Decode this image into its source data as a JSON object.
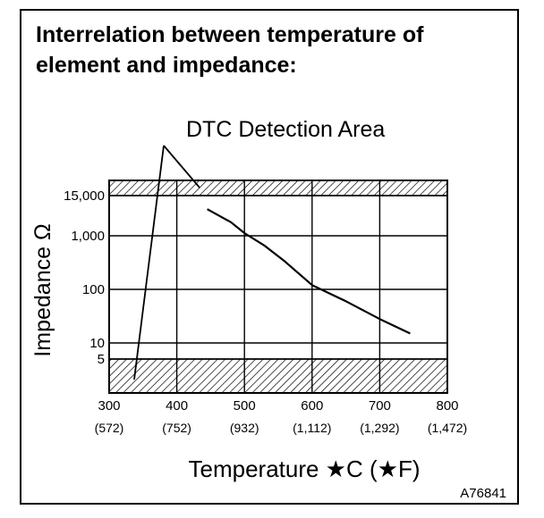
{
  "figure": {
    "title_line1": "Interrelation between temperature of",
    "title_line2": "element and impedance:",
    "callout_label": "DTC Detection Area",
    "figure_id": "A76841"
  },
  "chart_data": {
    "type": "line",
    "title": "Interrelation between temperature of element and impedance:",
    "xlabel": "Temperature ★C (★F)",
    "ylabel": "Impedance Ω",
    "x_ticks": [
      {
        "value": 300,
        "label": "300",
        "sublabel": "(572)"
      },
      {
        "value": 400,
        "label": "400",
        "sublabel": "(752)"
      },
      {
        "value": 500,
        "label": "500",
        "sublabel": "(932)"
      },
      {
        "value": 600,
        "label": "600",
        "sublabel": "(1,112)"
      },
      {
        "value": 700,
        "label": "700",
        "sublabel": "(1,292)"
      },
      {
        "value": 800,
        "label": "800",
        "sublabel": "(1,472)"
      }
    ],
    "y_ticks": [
      {
        "value": 5,
        "label": "5"
      },
      {
        "value": 10,
        "label": "10"
      },
      {
        "value": 100,
        "label": "100"
      },
      {
        "value": 1000,
        "label": "1,000"
      },
      {
        "value": 15000,
        "label": "15,000"
      }
    ],
    "xlim": [
      300,
      800
    ],
    "y_scale": "log",
    "grid": true,
    "detection_areas": [
      {
        "name": "high",
        "from": 15000,
        "to": 30000
      },
      {
        "name": "low",
        "from": 1.4,
        "to": 5
      }
    ],
    "series": [
      {
        "values": [
          {
            "x": 445,
            "y": 6000
          },
          {
            "x": 480,
            "y": 2500
          },
          {
            "x": 500,
            "y": 1200
          },
          {
            "x": 530,
            "y": 650
          },
          {
            "x": 560,
            "y": 330
          },
          {
            "x": 600,
            "y": 120
          },
          {
            "x": 650,
            "y": 60
          },
          {
            "x": 700,
            "y": 28
          },
          {
            "x": 745,
            "y": 15
          }
        ]
      }
    ]
  }
}
